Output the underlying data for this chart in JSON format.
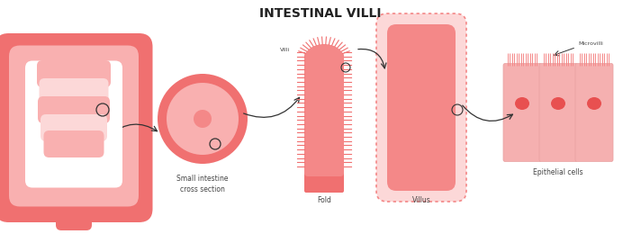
{
  "title": "INTESTINAL VILLI",
  "title_fontsize": 10,
  "title_fontweight": "bold",
  "bg_color": "#ffffff",
  "pink_dark": "#f07070",
  "pink_medium": "#f48888",
  "pink_light": "#f9b0b0",
  "pink_pale": "#fcd8d8",
  "pink_cell": "#f5b0b0",
  "pink_nucleus": "#e85050",
  "labels": {
    "cross_section": "Small intestine\ncross section",
    "fold": "Fold",
    "villus": "Villus",
    "epithelial": "Epithelial cells",
    "villi_label": "Villi",
    "microvilli_label": "Microvilli"
  },
  "label_fontsize": 5.5,
  "arrow_color": "#333333"
}
